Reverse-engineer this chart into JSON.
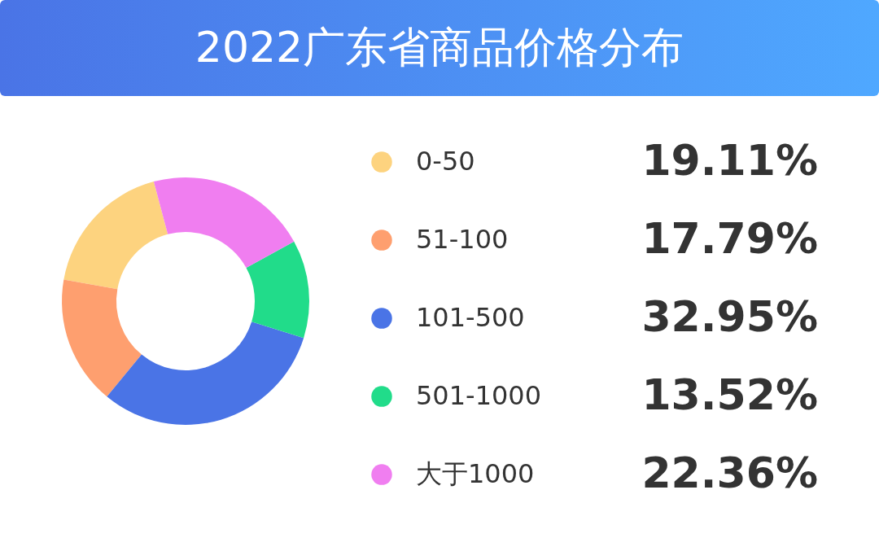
{
  "chart_data": {
    "type": "donut",
    "title": "2022广东省商品价格分布",
    "categories": [
      "0-50",
      "51-100",
      "101-500",
      "501-1000",
      "大于1000"
    ],
    "values": [
      19.11,
      17.79,
      32.95,
      13.52,
      22.36
    ],
    "value_labels": [
      "19.11%",
      "17.79%",
      "32.95%",
      "13.52%",
      "22.36%"
    ],
    "colors": [
      "#fdd37f",
      "#fe9f6f",
      "#4a74e6",
      "#21dc8a",
      "#f07ef0"
    ],
    "legend": "right"
  }
}
